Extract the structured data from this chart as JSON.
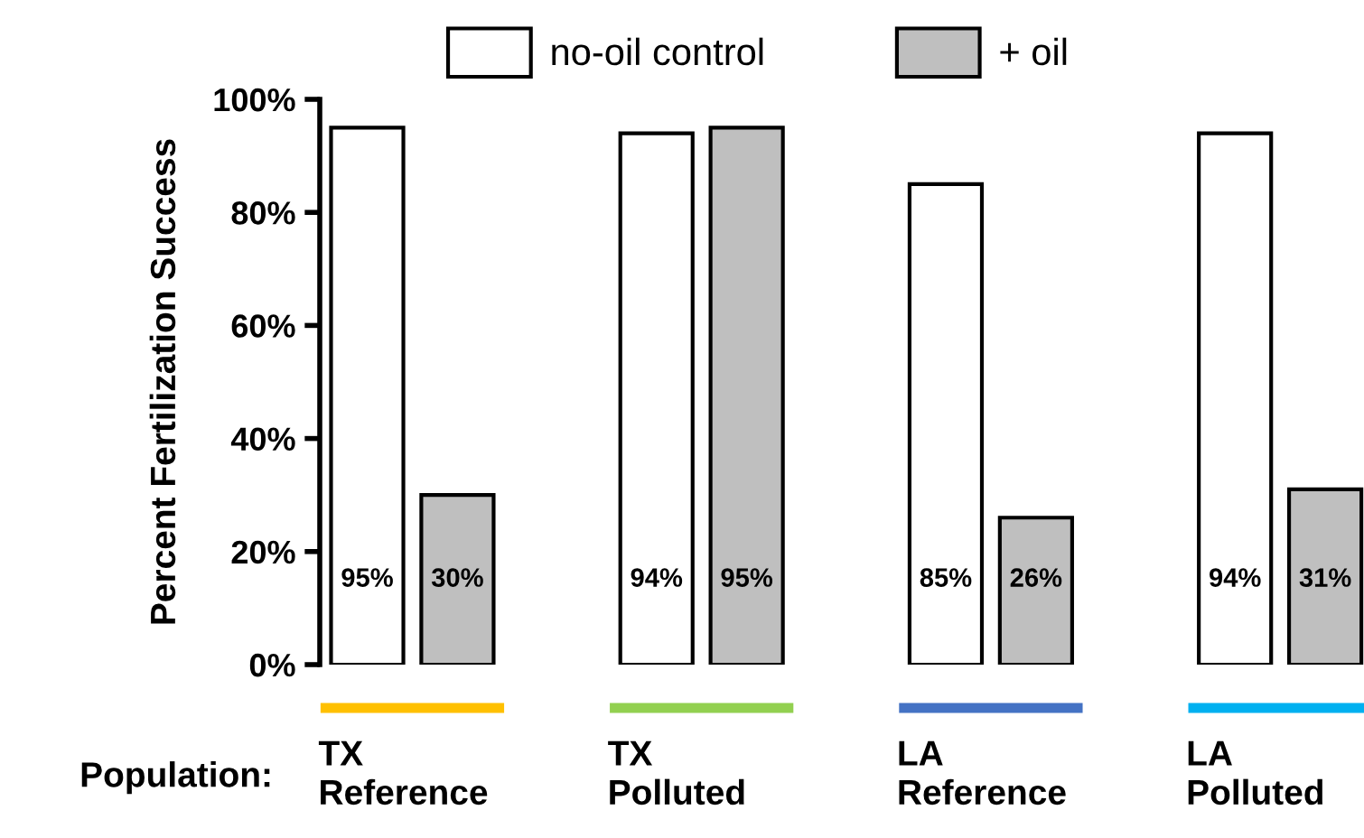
{
  "chart_data": {
    "type": "bar",
    "ylabel": "Percent Fertilization Success",
    "xlabel": "Population:",
    "categories": [
      "TX\nReference",
      "TX\nPolluted",
      "LA\nReference",
      "LA\nPolluted"
    ],
    "series": [
      {
        "name": "no-oil control",
        "color": "#ffffff",
        "values": [
          95,
          94,
          85,
          94
        ],
        "value_labels": [
          "95%",
          "94%",
          "85%",
          "94%"
        ]
      },
      {
        "name": "+ oil",
        "color": "#bfbfbf",
        "values": [
          30,
          95,
          26,
          31
        ],
        "value_labels": [
          "30%",
          "95%",
          "26%",
          "31%"
        ]
      }
    ],
    "ylim": [
      0,
      100
    ],
    "yticks": [
      {
        "value": 0,
        "label": "0%"
      },
      {
        "value": 20,
        "label": "20%"
      },
      {
        "value": 40,
        "label": "40%"
      },
      {
        "value": 60,
        "label": "60%"
      },
      {
        "value": 80,
        "label": "80%"
      },
      {
        "value": 100,
        "label": "100%"
      }
    ],
    "legend": "top",
    "grid": false
  }
}
